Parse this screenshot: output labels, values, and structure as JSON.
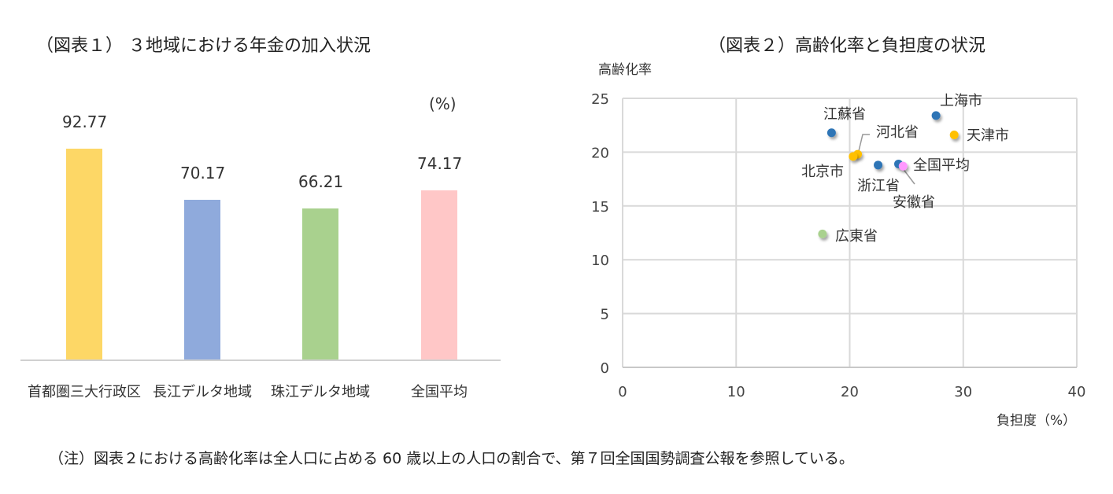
{
  "chart1": {
    "title": "（図表１） ３地域における年金の加入状況",
    "unit": "(%)"
  },
  "chart2": {
    "title": "（図表２）高齢化率と負担度の状況",
    "ylabel": "高齢化率",
    "xlabel": "負担度（%）"
  },
  "note": "（注）図表２における高齢化率は全人口に占める 60 歳以上の人口の割合で、第７回全国国勢調査公報を参照している。",
  "chart_data": [
    {
      "type": "bar",
      "title": "（図表１） ３地域における年金の加入状況",
      "categories": [
        "首都圏三大行政区",
        "長江デルタ地域",
        "珠江デルタ地域",
        "全国平均"
      ],
      "values": [
        92.77,
        70.17,
        66.21,
        74.17
      ],
      "value_labels": [
        "92.77",
        "70.17",
        "66.21",
        "74.17"
      ],
      "colors": [
        "#FDD766",
        "#8FAADC",
        "#A9D18E",
        "#FFC7C7"
      ],
      "unit": "(%)",
      "xlabel": "",
      "ylabel": "",
      "grid": false,
      "y_axis_visible": false
    },
    {
      "type": "scatter",
      "title": "（図表２）高齢化率と負担度の状況",
      "xlabel": "負担度（%）",
      "ylabel": "高齢化率",
      "xlim": [
        0,
        40
      ],
      "ylim": [
        0,
        25
      ],
      "xticks": [
        "0",
        "10",
        "20",
        "30",
        "40"
      ],
      "yticks": [
        "0",
        "5",
        "10",
        "15",
        "20",
        "25"
      ],
      "grid": true,
      "points": [
        {
          "label": "上海市",
          "x": 27.6,
          "y": 23.4,
          "color": "#2E75B6"
        },
        {
          "label": "天津市",
          "x": 29.2,
          "y": 21.6,
          "color": "#FFC000"
        },
        {
          "label": "江蘇省",
          "x": 18.4,
          "y": 21.8,
          "color": "#2E75B6"
        },
        {
          "label": "河北省",
          "x": 20.7,
          "y": 19.8,
          "color": "#FFC000"
        },
        {
          "label": "北京市",
          "x": 20.3,
          "y": 19.6,
          "color": "#FFC000"
        },
        {
          "label": "浙江省",
          "x": 22.5,
          "y": 18.8,
          "color": "#2E75B6"
        },
        {
          "label": "安徽省",
          "x": 24.3,
          "y": 18.9,
          "color": "#2E75B6"
        },
        {
          "label": "全国平均",
          "x": 24.7,
          "y": 18.7,
          "color": "#FF99FF"
        },
        {
          "label": "広東省",
          "x": 17.6,
          "y": 12.4,
          "color": "#A9D18E"
        }
      ]
    }
  ]
}
